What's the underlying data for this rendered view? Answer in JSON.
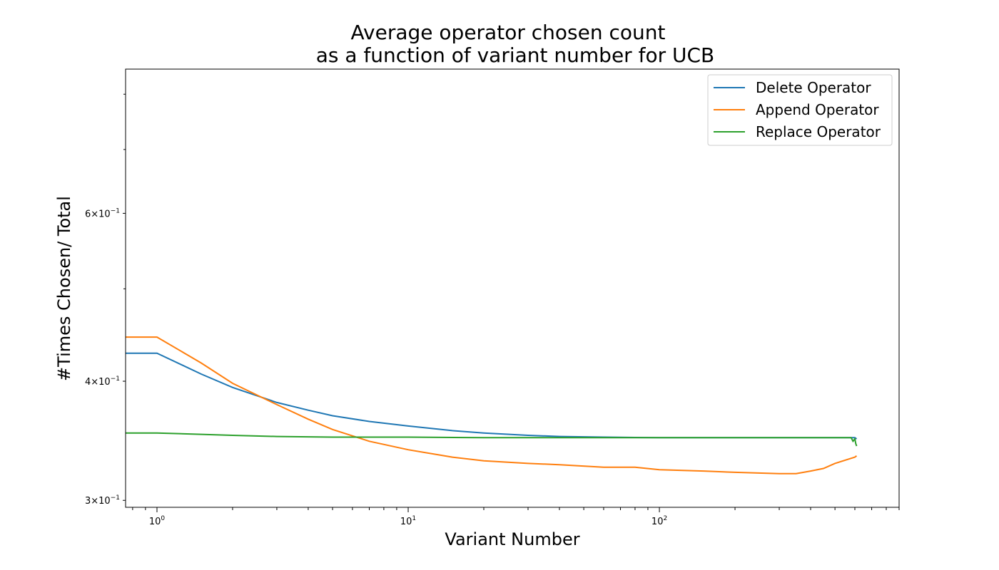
{
  "chart_data": {
    "type": "line",
    "title_line1": "Average operator chosen count",
    "title_line2": "as a function of variant number for UCB",
    "xlabel": "Variant Number",
    "ylabel": "#Times Chosen/ Total",
    "xscale": "log",
    "yscale": "log",
    "xlim": [
      0.75,
      900
    ],
    "ylim": [
      0.295,
      0.85
    ],
    "grid": false,
    "legend_position": "top-right",
    "x_ticks": [
      {
        "value": 1,
        "base": "10",
        "exp": "0"
      },
      {
        "value": 10,
        "base": "10",
        "exp": "1"
      },
      {
        "value": 100,
        "base": "10",
        "exp": "2"
      }
    ],
    "y_ticks": [
      {
        "value": 0.3,
        "mant": "3",
        "exp": "−1"
      },
      {
        "value": 0.4,
        "mant": "4",
        "exp": "−1"
      },
      {
        "value": 0.6,
        "mant": "6",
        "exp": "−1"
      }
    ],
    "y_minor_ticks": [
      0.5,
      0.7,
      0.8
    ],
    "series": [
      {
        "name": "Delete Operator",
        "color": "#1f77b4",
        "points": [
          [
            0.75,
            0.428
          ],
          [
            1,
            0.428
          ],
          [
            1.5,
            0.407
          ],
          [
            2,
            0.394
          ],
          [
            3,
            0.38
          ],
          [
            4,
            0.373
          ],
          [
            5,
            0.368
          ],
          [
            7,
            0.363
          ],
          [
            10,
            0.359
          ],
          [
            15,
            0.355
          ],
          [
            20,
            0.353
          ],
          [
            30,
            0.351
          ],
          [
            40,
            0.35
          ],
          [
            60,
            0.3495
          ],
          [
            100,
            0.349
          ],
          [
            200,
            0.349
          ],
          [
            400,
            0.349
          ],
          [
            600,
            0.349
          ],
          [
            610,
            0.348
          ]
        ]
      },
      {
        "name": "Append Operator",
        "color": "#ff7f0e",
        "points": [
          [
            0.75,
            0.445
          ],
          [
            1,
            0.445
          ],
          [
            1.5,
            0.418
          ],
          [
            2,
            0.398
          ],
          [
            3,
            0.378
          ],
          [
            4,
            0.365
          ],
          [
            5,
            0.356
          ],
          [
            7,
            0.346
          ],
          [
            10,
            0.339
          ],
          [
            15,
            0.333
          ],
          [
            20,
            0.33
          ],
          [
            30,
            0.328
          ],
          [
            40,
            0.327
          ],
          [
            60,
            0.325
          ],
          [
            80,
            0.325
          ],
          [
            100,
            0.323
          ],
          [
            150,
            0.322
          ],
          [
            200,
            0.321
          ],
          [
            300,
            0.32
          ],
          [
            350,
            0.32
          ],
          [
            400,
            0.322
          ],
          [
            450,
            0.324
          ],
          [
            500,
            0.328
          ],
          [
            600,
            0.333
          ],
          [
            610,
            0.334
          ]
        ]
      },
      {
        "name": "Replace Operator",
        "color": "#2ca02c",
        "points": [
          [
            0.75,
            0.353
          ],
          [
            1,
            0.353
          ],
          [
            2,
            0.351
          ],
          [
            3,
            0.35
          ],
          [
            5,
            0.3495
          ],
          [
            10,
            0.3495
          ],
          [
            20,
            0.349
          ],
          [
            40,
            0.349
          ],
          [
            100,
            0.349
          ],
          [
            200,
            0.349
          ],
          [
            400,
            0.349
          ],
          [
            580,
            0.349
          ],
          [
            590,
            0.346
          ],
          [
            600,
            0.348
          ],
          [
            605,
            0.344
          ],
          [
            610,
            0.342
          ]
        ]
      }
    ]
  }
}
